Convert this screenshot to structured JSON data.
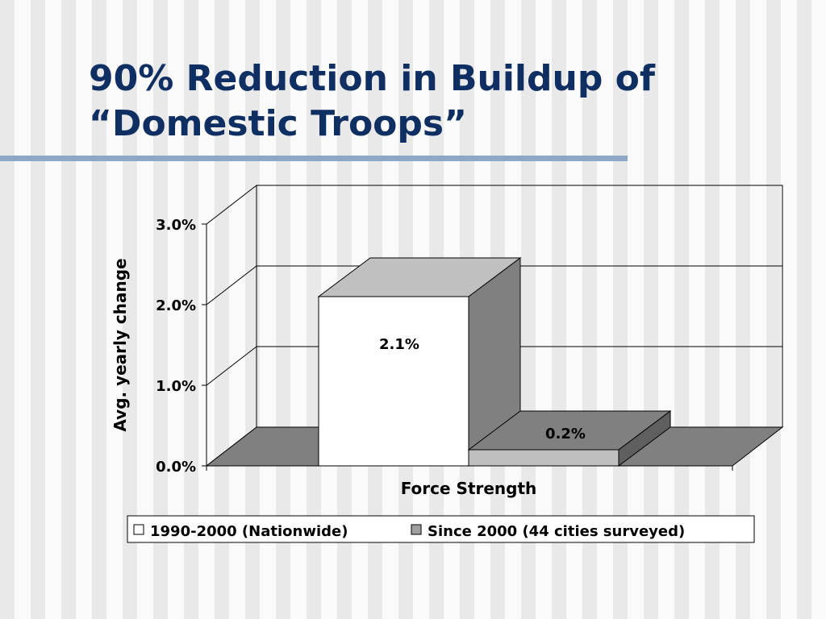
{
  "slide": {
    "title_line1": "90% Reduction in Buildup of",
    "title_line2": "“Domestic Troops”"
  },
  "chart_data": {
    "type": "bar",
    "categories": [
      "Force Strength"
    ],
    "series": [
      {
        "name": "1990-2000 (Nationwide)",
        "values": [
          2.1
        ],
        "data_label": "2.1%",
        "color": "#ffffff"
      },
      {
        "name": "Since 2000 (44 cities surveyed)",
        "values": [
          0.2
        ],
        "data_label": "0.2%",
        "color": "#bfbfbf"
      }
    ],
    "xlabel": "Force Strength",
    "ylabel": "Avg. yearly change",
    "ylim": [
      0,
      3
    ],
    "y_ticks": [
      "0.0%",
      "1.0%",
      "2.0%",
      "3.0%"
    ],
    "grid": true,
    "three_d": true,
    "legend_position": "bottom"
  },
  "colors": {
    "title": "#0f2f63",
    "rule": "#8ea7c6",
    "floor": "#808080",
    "bar_side": "#808080",
    "bar_top": "#c0c0c0"
  }
}
